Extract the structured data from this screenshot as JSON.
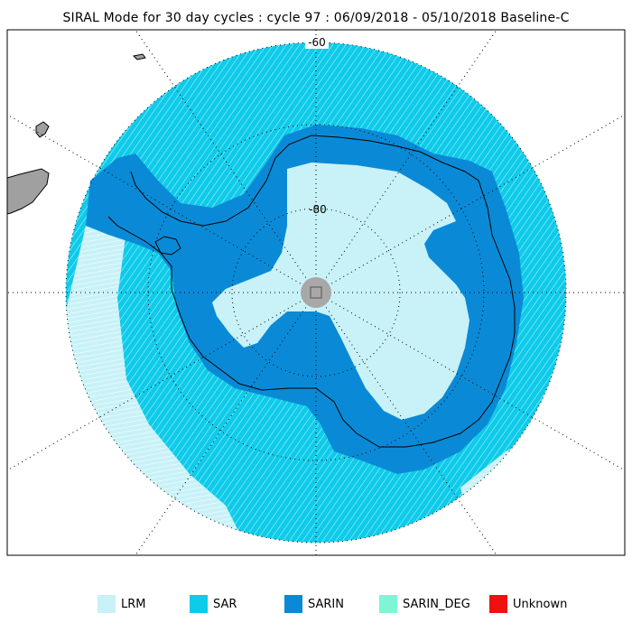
{
  "title": "SIRAL Mode for 30 day cycles : cycle 97 : 06/09/2018 - 05/10/2018 Baseline-C",
  "map": {
    "projection": "south polar stereographic",
    "lat_labels": [
      "-60",
      "-80"
    ],
    "colors": {
      "background": "#ffffff",
      "lrm": "#c8f2f8",
      "sar": "#0ecbea",
      "sarin": "#0a8ad6",
      "sarin_deg": "#7ff5d6",
      "unknown": "#f01010",
      "land_gray": "#a0a0a0",
      "coast": "#000000",
      "pole_gray": "#a8a8a8"
    }
  },
  "legend": [
    {
      "key": "lrm",
      "label": "LRM",
      "color": "#c8f2f8"
    },
    {
      "key": "sar",
      "label": "SAR",
      "color": "#0ecbea"
    },
    {
      "key": "sarin",
      "label": "SARIN",
      "color": "#0a8ad6"
    },
    {
      "key": "sarin_deg",
      "label": "SARIN_DEG",
      "color": "#7ff5d6"
    },
    {
      "key": "unknown",
      "label": "Unknown",
      "color": "#f01010"
    }
  ]
}
